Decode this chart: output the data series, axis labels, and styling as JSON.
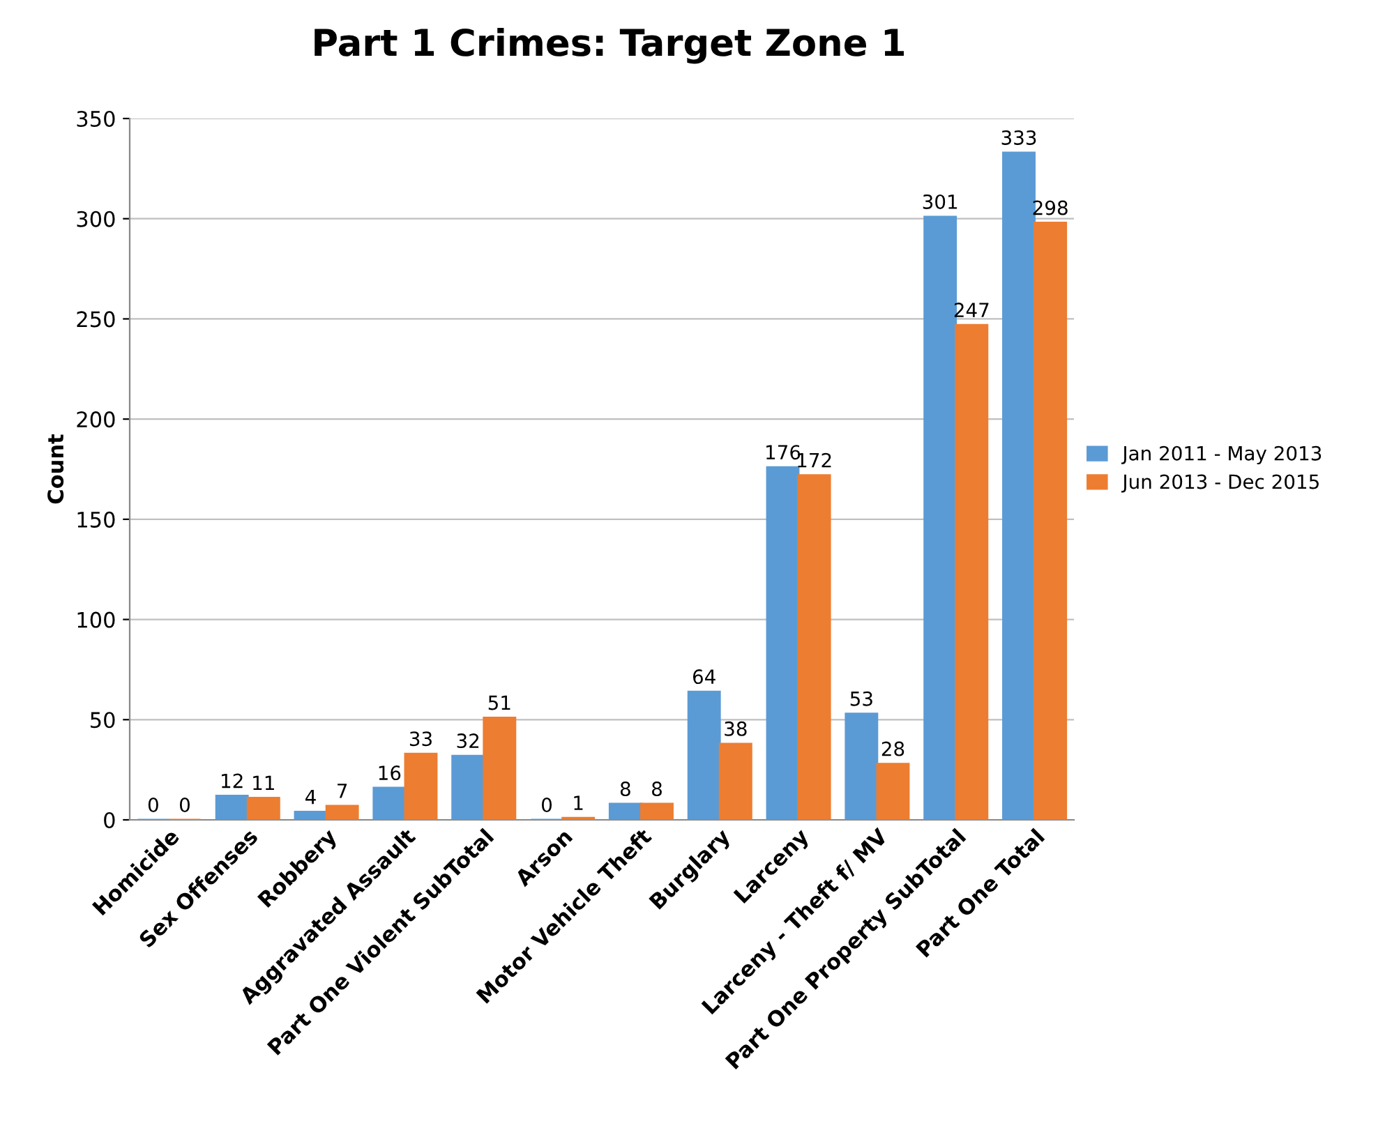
{
  "chart_data": {
    "type": "bar",
    "title": "Part 1 Crimes: Target Zone 1",
    "ylabel": "Count",
    "categories": [
      "Homicide",
      "Sex Offenses",
      "Robbery",
      "Aggravated Assault",
      "Part One Violent SubTotal",
      "Arson",
      "Motor Vehicle Theft",
      "Burglary",
      "Larceny",
      "Larceny - Theft f/ MV",
      "Part One Property SubTotal",
      "Part One Total"
    ],
    "series": [
      {
        "name": "Jan 2011 - May 2013",
        "color": "#5b9bd5",
        "values": [
          0,
          12,
          4,
          16,
          32,
          0,
          8,
          64,
          176,
          53,
          301,
          333
        ]
      },
      {
        "name": "Jun 2013 - Dec 2015",
        "color": "#ed7d31",
        "values": [
          0,
          11,
          7,
          33,
          51,
          1,
          8,
          38,
          172,
          28,
          247,
          298
        ]
      }
    ],
    "ylim": [
      0,
      350
    ],
    "yticks": [
      0,
      50,
      100,
      150,
      200,
      250,
      300,
      350
    ],
    "grid": "y",
    "legend": "right",
    "data_labels": true
  }
}
